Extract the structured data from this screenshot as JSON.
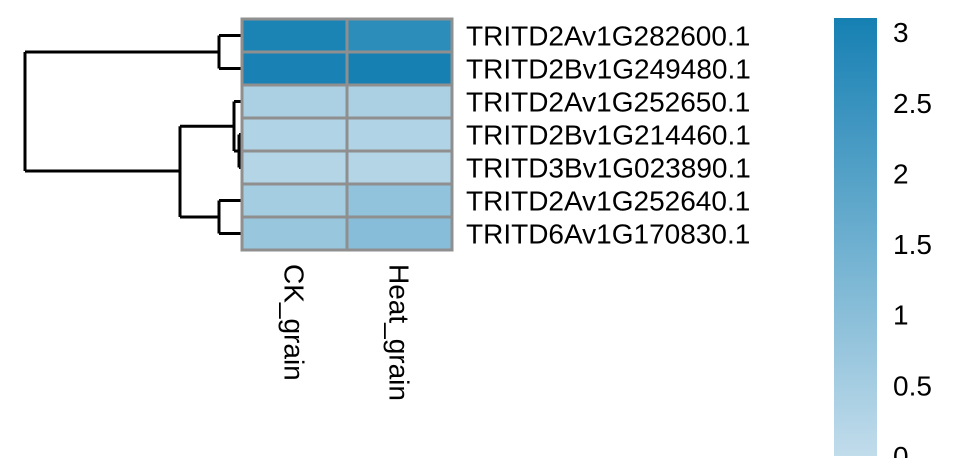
{
  "chart_data": {
    "type": "heatmap",
    "title": "",
    "xlabel": "",
    "ylabel": "",
    "columns": [
      "CK_grain",
      "Heat_grain"
    ],
    "rows": [
      "TRITD2Av1G282600.1",
      "TRITD2Bv1G249480.1",
      "TRITD2Av1G252650.1",
      "TRITD2Bv1G214460.1",
      "TRITD3Bv1G023890.1",
      "TRITD2Av1G252640.1",
      "TRITD6Av1G170830.1"
    ],
    "values": [
      [
        3.0,
        2.7
      ],
      [
        3.05,
        3.1
      ],
      [
        0.4,
        0.4
      ],
      [
        0.3,
        0.3
      ],
      [
        0.25,
        0.25
      ],
      [
        0.5,
        0.85
      ],
      [
        0.75,
        1.05
      ]
    ],
    "color_scale": {
      "min": 0,
      "max": 3.1,
      "low_color": "#c1dceb",
      "high_color": "#1680b3",
      "ticks": [
        0,
        0.5,
        1,
        1.5,
        2,
        2.5,
        3
      ],
      "tick_labels": [
        "0",
        "0.5",
        "1",
        "1.5",
        "2",
        "2.5",
        "3"
      ]
    },
    "row_dendrogram": true,
    "legend_placement": "right"
  }
}
